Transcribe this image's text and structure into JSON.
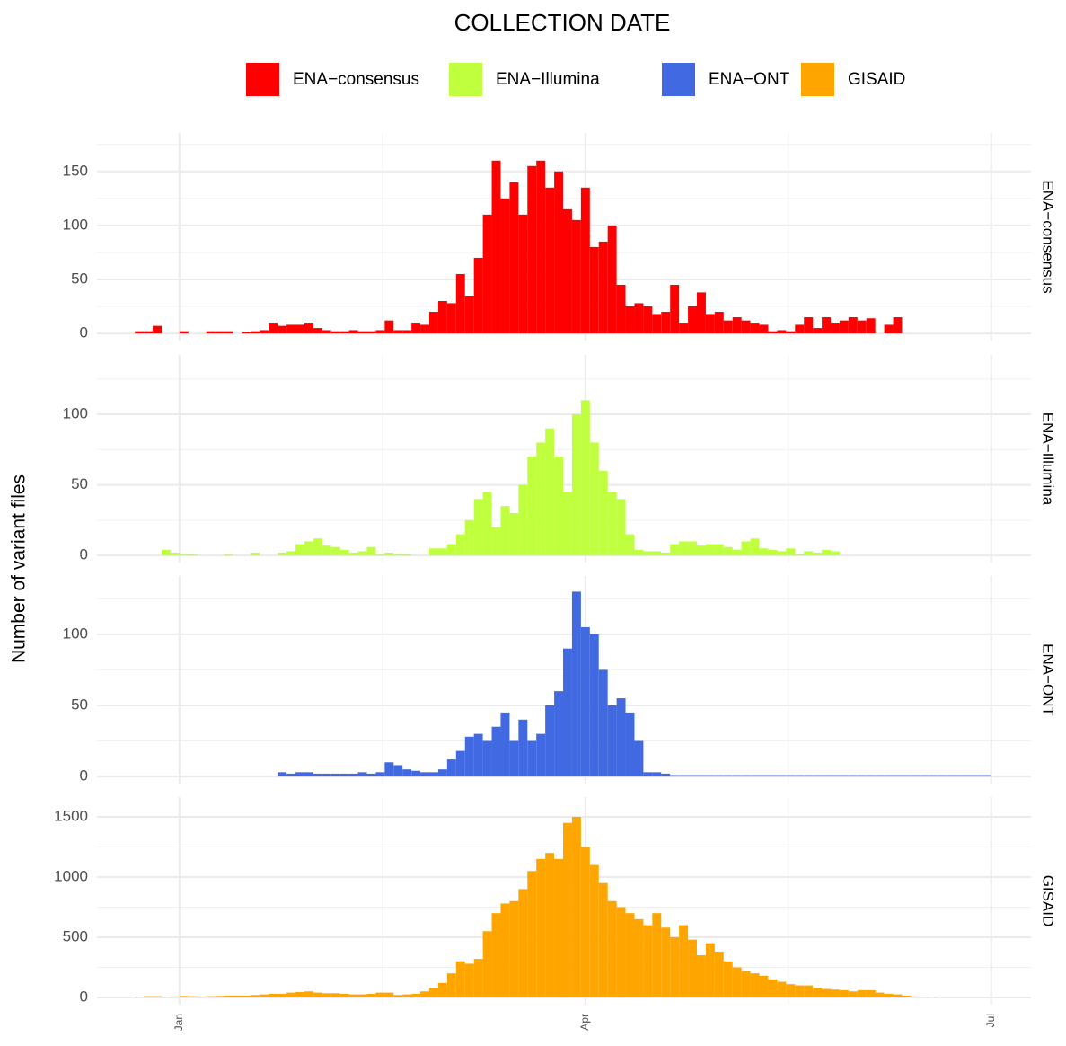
{
  "chart_data": {
    "type": "histogram",
    "title": "COLLECTION DATE",
    "y_label": "Number of variant files",
    "xlim": [
      -18.5,
      190.9
    ],
    "xticks": [
      {
        "value": 0,
        "label": "Jan"
      },
      {
        "value": 91,
        "label": "Apr"
      },
      {
        "value": 182,
        "label": "Jul"
      }
    ],
    "grid": true,
    "legend": "top",
    "bins": [
      -12,
      -10,
      -8,
      -6,
      -4,
      -2,
      0,
      2,
      4,
      6,
      8,
      10,
      12,
      14,
      16,
      18,
      20,
      22,
      24,
      26,
      28,
      30,
      32,
      34,
      36,
      38,
      40,
      42,
      44,
      46,
      48,
      50,
      52,
      54,
      56,
      58,
      60,
      62,
      64,
      66,
      68,
      70,
      72,
      74,
      76,
      78,
      80,
      82,
      84,
      86,
      88,
      90,
      92,
      94,
      96,
      98,
      100,
      102,
      104,
      106,
      108,
      110,
      112,
      114,
      116,
      118,
      120,
      122,
      124,
      126,
      128,
      130,
      132,
      134,
      136,
      138,
      140,
      142,
      144,
      146,
      148,
      150,
      152,
      154,
      156,
      158,
      160,
      162,
      164,
      166,
      168,
      170,
      172,
      174,
      176,
      178,
      180,
      182,
      184,
      186,
      188
    ],
    "series": [
      {
        "name": "ENA−consensus",
        "color": "#ff0000",
        "ylim": [
          -6.6,
          185.6
        ],
        "yticks": [
          0,
          50,
          100,
          150
        ],
        "values": [
          0,
          2,
          2,
          7,
          0,
          0,
          2,
          0,
          0,
          2,
          2,
          2,
          0,
          1,
          2,
          3,
          10,
          7,
          8,
          8,
          10,
          5,
          3,
          2,
          2,
          3,
          2,
          2,
          3,
          12,
          3,
          3,
          10,
          8,
          20,
          30,
          28,
          55,
          35,
          70,
          110,
          160,
          125,
          140,
          110,
          155,
          160,
          135,
          150,
          115,
          105,
          135,
          80,
          85,
          100,
          45,
          25,
          28,
          25,
          18,
          20,
          45,
          10,
          25,
          38,
          18,
          20,
          12,
          15,
          12,
          10,
          8,
          2,
          3,
          2,
          8,
          15,
          5,
          15,
          10,
          12,
          15,
          12,
          14,
          0,
          8,
          15,
          0,
          0,
          0,
          0,
          0,
          0,
          0,
          0,
          0,
          0,
          0,
          0,
          0
        ]
      },
      {
        "name": "ENA−Illumina",
        "color": "#c0ff3e",
        "ylim": [
          -5,
          142
        ],
        "yticks": [
          0,
          50,
          100
        ],
        "values": [
          0,
          0,
          0,
          0,
          4,
          2,
          1,
          1,
          0,
          0,
          0,
          1,
          0,
          0,
          2,
          0,
          0,
          2,
          3,
          8,
          10,
          12,
          7,
          6,
          4,
          2,
          3,
          6,
          1,
          2,
          1,
          1,
          0,
          0,
          5,
          5,
          8,
          15,
          25,
          40,
          45,
          20,
          35,
          30,
          50,
          70,
          80,
          90,
          70,
          45,
          100,
          110,
          80,
          60,
          45,
          40,
          15,
          4,
          3,
          3,
          2,
          8,
          10,
          10,
          7,
          8,
          8,
          6,
          4,
          10,
          12,
          5,
          4,
          3,
          5,
          1,
          3,
          2,
          4,
          3,
          0,
          0,
          0,
          0,
          0,
          0,
          0,
          0,
          0,
          0,
          0,
          0,
          0,
          0,
          0,
          0,
          0,
          0,
          0,
          0
        ]
      },
      {
        "name": "ENA−ONT",
        "color": "#4169e1",
        "ylim": [
          -5,
          141
        ],
        "yticks": [
          0,
          50,
          100
        ],
        "values": [
          0,
          0,
          0,
          0,
          0,
          0,
          0,
          0,
          0,
          0,
          0,
          0,
          0,
          0,
          0,
          0,
          0,
          3,
          2,
          3,
          3,
          2,
          2,
          2,
          2,
          2,
          3,
          2,
          3,
          10,
          8,
          5,
          4,
          3,
          3,
          5,
          12,
          18,
          28,
          30,
          25,
          35,
          45,
          25,
          40,
          25,
          30,
          50,
          60,
          90,
          130,
          105,
          100,
          75,
          50,
          55,
          45,
          25,
          3,
          3,
          2,
          1,
          1,
          1,
          1,
          1,
          1,
          1,
          1,
          1,
          1,
          1,
          1,
          1,
          1,
          1,
          1,
          1,
          1,
          1,
          1,
          1,
          1,
          1,
          1,
          1,
          1,
          1,
          1,
          1,
          1,
          1,
          1,
          1,
          1,
          1,
          1,
          0,
          0,
          0
        ]
      },
      {
        "name": "GISAID",
        "color": "#ffa500",
        "ylim": [
          -60,
          1664
        ],
        "yticks": [
          0,
          500,
          1000,
          1500
        ],
        "values": [
          0,
          5,
          10,
          10,
          5,
          8,
          12,
          10,
          8,
          10,
          12,
          15,
          15,
          15,
          20,
          25,
          30,
          30,
          40,
          45,
          50,
          40,
          35,
          35,
          30,
          25,
          25,
          30,
          40,
          40,
          20,
          25,
          30,
          50,
          80,
          120,
          200,
          300,
          280,
          320,
          550,
          700,
          780,
          800,
          900,
          1050,
          1150,
          1200,
          1150,
          1450,
          1500,
          1250,
          1100,
          950,
          800,
          750,
          700,
          650,
          600,
          700,
          580,
          500,
          600,
          480,
          350,
          450,
          380,
          300,
          250,
          220,
          200,
          180,
          150,
          130,
          110,
          100,
          100,
          80,
          70,
          65,
          60,
          50,
          60,
          60,
          40,
          30,
          25,
          15,
          8,
          5,
          3,
          0,
          0,
          0,
          0,
          0,
          0,
          0,
          0,
          0
        ]
      }
    ]
  }
}
